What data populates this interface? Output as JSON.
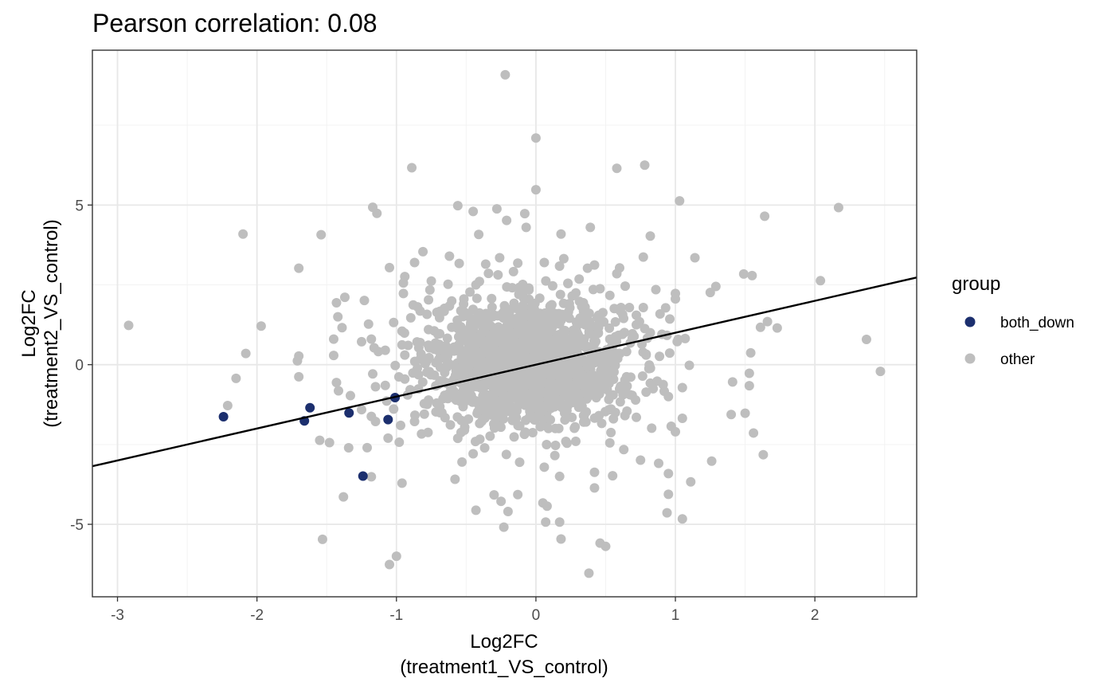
{
  "chart_data": {
    "type": "scatter",
    "title": "Pearson correlation: 0.08",
    "xlabel": [
      "Log2FC",
      "(treatment1_VS_control)"
    ],
    "ylabel": [
      "Log2FC",
      "(treatment2_VS_control)"
    ],
    "xlim": [
      -3.18,
      2.73
    ],
    "ylim": [
      -7.27,
      9.85
    ],
    "x_ticks": [
      -3,
      -2,
      -1,
      0,
      1,
      2
    ],
    "x_tick_labels": [
      "-3",
      "-2",
      "-1",
      "0",
      "1",
      "2"
    ],
    "y_ticks": [
      -5,
      0,
      5
    ],
    "y_tick_labels": [
      "-5",
      "0",
      "5"
    ],
    "grid": true,
    "legend": {
      "title": "group",
      "position": "right",
      "entries": [
        {
          "label": "both_down",
          "color": "#1c2f6e"
        },
        {
          "label": "other",
          "color": "#bebebe"
        }
      ]
    },
    "series": [
      {
        "name": "other",
        "color": "#bebebe",
        "points": [
          [
            -0.22,
            9.08
          ],
          [
            0.0,
            7.1
          ],
          [
            -0.89,
            6.17
          ],
          [
            0.58,
            6.15
          ],
          [
            0.78,
            6.25
          ],
          [
            0.0,
            5.48
          ],
          [
            1.03,
            5.13
          ],
          [
            -1.17,
            4.93
          ],
          [
            -1.14,
            4.74
          ],
          [
            -0.56,
            4.98
          ],
          [
            -0.45,
            4.8
          ],
          [
            -0.28,
            4.88
          ],
          [
            -0.21,
            4.52
          ],
          [
            -0.08,
            4.73
          ],
          [
            0.39,
            4.3
          ],
          [
            -0.07,
            4.3
          ],
          [
            1.64,
            4.65
          ],
          [
            2.17,
            4.92
          ],
          [
            -2.1,
            4.09
          ],
          [
            -1.54,
            4.07
          ],
          [
            -0.41,
            4.08
          ],
          [
            0.18,
            4.09
          ],
          [
            0.82,
            4.03
          ],
          [
            -0.81,
            3.54
          ],
          [
            -0.87,
            3.2
          ],
          [
            -0.55,
            3.17
          ],
          [
            -0.62,
            3.4
          ],
          [
            -0.36,
            3.15
          ],
          [
            -0.26,
            3.35
          ],
          [
            -0.13,
            3.18
          ],
          [
            0.06,
            3.2
          ],
          [
            0.2,
            3.32
          ],
          [
            0.37,
            3.02
          ],
          [
            0.42,
            3.12
          ],
          [
            0.58,
            2.85
          ],
          [
            0.6,
            3.03
          ],
          [
            0.77,
            3.37
          ],
          [
            1.14,
            3.35
          ],
          [
            -1.7,
            3.02
          ],
          [
            -1.05,
            3.04
          ],
          [
            -0.94,
            2.76
          ],
          [
            -0.75,
            2.62
          ],
          [
            -0.63,
            2.52
          ],
          [
            -0.34,
            2.86
          ],
          [
            0.31,
            2.68
          ],
          [
            0.64,
            2.46
          ],
          [
            1.29,
            2.45
          ],
          [
            1.49,
            2.84
          ],
          [
            1.55,
            2.79
          ],
          [
            2.04,
            2.63
          ],
          [
            -0.95,
            2.56
          ],
          [
            -0.76,
            2.34
          ],
          [
            -0.43,
            2.5
          ],
          [
            -0.17,
            2.41
          ],
          [
            -0.05,
            2.34
          ],
          [
            0.12,
            2.47
          ],
          [
            0.23,
            2.54
          ],
          [
            0.46,
            2.38
          ],
          [
            0.53,
            2.17
          ],
          [
            0.86,
            2.35
          ],
          [
            1.0,
            2.23
          ],
          [
            1.25,
            2.26
          ],
          [
            -1.43,
            1.94
          ],
          [
            -1.37,
            2.11
          ],
          [
            -1.23,
            2.01
          ],
          [
            -0.95,
            2.23
          ],
          [
            -0.88,
            1.87
          ],
          [
            -0.77,
            2.03
          ],
          [
            -0.62,
            1.84
          ],
          [
            0.34,
            1.94
          ],
          [
            0.61,
            1.79
          ],
          [
            0.67,
            1.79
          ],
          [
            0.77,
            1.79
          ],
          [
            0.93,
            1.78
          ],
          [
            1.0,
            2.06
          ],
          [
            -0.83,
            1.68
          ],
          [
            -0.71,
            1.64
          ],
          [
            -0.51,
            1.64
          ],
          [
            0.48,
            1.63
          ],
          [
            0.72,
            1.55
          ],
          [
            0.89,
            1.59
          ],
          [
            0.96,
            1.43
          ],
          [
            -1.97,
            1.21
          ],
          [
            -1.42,
            1.5
          ],
          [
            -1.2,
            1.27
          ],
          [
            -1.02,
            1.32
          ],
          [
            -0.96,
            1.05
          ],
          [
            -0.77,
            1.1
          ],
          [
            -0.69,
            0.97
          ],
          [
            0.44,
            1.47
          ],
          [
            0.57,
            1.34
          ],
          [
            0.72,
            1.25
          ],
          [
            0.78,
            1.13
          ],
          [
            0.82,
            1.0
          ],
          [
            0.94,
            0.92
          ],
          [
            1.02,
            0.79
          ],
          [
            1.61,
            1.17
          ],
          [
            1.66,
            1.35
          ],
          [
            1.73,
            1.15
          ],
          [
            -2.92,
            1.23
          ],
          [
            -1.39,
            1.16
          ],
          [
            -1.45,
            0.8
          ],
          [
            -1.25,
            0.72
          ],
          [
            -1.18,
            0.8
          ],
          [
            -1.08,
            0.45
          ],
          [
            -0.96,
            0.62
          ],
          [
            -0.84,
            0.53
          ],
          [
            -0.72,
            0.68
          ],
          [
            0.53,
            0.8
          ],
          [
            0.62,
            0.95
          ],
          [
            0.69,
            0.82
          ],
          [
            0.76,
            0.64
          ],
          [
            1.07,
            0.82
          ],
          [
            -2.08,
            0.35
          ],
          [
            -1.7,
            0.27
          ],
          [
            -1.71,
            0.12
          ],
          [
            -1.45,
            0.29
          ],
          [
            -1.16,
            0.53
          ],
          [
            -1.13,
            0.41
          ],
          [
            -0.94,
            0.3
          ],
          [
            -0.83,
            0.17
          ],
          [
            0.65,
            0.41
          ],
          [
            0.79,
            0.33
          ],
          [
            1.54,
            0.37
          ],
          [
            1.1,
            -0.02
          ],
          [
            -1.7,
            -0.38
          ],
          [
            -2.15,
            -0.43
          ],
          [
            -1.43,
            -0.56
          ],
          [
            -1.17,
            -0.29
          ],
          [
            -1.08,
            -0.65
          ],
          [
            -0.94,
            -0.45
          ],
          [
            0.56,
            -0.23
          ],
          [
            0.68,
            -0.39
          ],
          [
            0.82,
            -0.58
          ],
          [
            1.05,
            -0.72
          ],
          [
            1.41,
            -0.54
          ],
          [
            1.53,
            -0.27
          ],
          [
            1.53,
            -0.66
          ],
          [
            2.37,
            0.79
          ],
          [
            2.47,
            -0.21
          ],
          [
            -2.21,
            -1.28
          ],
          [
            -1.33,
            -0.97
          ],
          [
            -1.25,
            -1.41
          ],
          [
            -1.15,
            -0.69
          ],
          [
            -1.07,
            -1.14
          ],
          [
            -0.92,
            -0.95
          ],
          [
            -0.77,
            -1.11
          ],
          [
            0.6,
            -0.76
          ],
          [
            0.69,
            -0.96
          ],
          [
            0.79,
            -0.86
          ],
          [
            0.95,
            -1.0
          ],
          [
            1.05,
            -1.68
          ],
          [
            -1.18,
            -1.62
          ],
          [
            -1.15,
            -1.78
          ],
          [
            -1.02,
            -1.39
          ],
          [
            -0.97,
            -1.9
          ],
          [
            -0.87,
            -1.78
          ],
          [
            -0.8,
            -1.55
          ],
          [
            0.57,
            -1.5
          ],
          [
            0.72,
            -1.65
          ],
          [
            0.83,
            -1.99
          ],
          [
            0.97,
            -1.93
          ],
          [
            1.0,
            -2.1
          ],
          [
            1.4,
            -1.56
          ],
          [
            1.5,
            -1.52
          ],
          [
            1.56,
            -2.14
          ],
          [
            -1.55,
            -2.37
          ],
          [
            -1.48,
            -2.44
          ],
          [
            -1.21,
            -2.6
          ],
          [
            -1.06,
            -2.3
          ],
          [
            -0.98,
            -2.43
          ],
          [
            -0.82,
            -2.17
          ],
          [
            0.53,
            -2.45
          ],
          [
            0.63,
            -2.66
          ],
          [
            0.75,
            -2.99
          ],
          [
            0.88,
            -3.09
          ],
          [
            1.26,
            -3.02
          ],
          [
            1.63,
            -2.82
          ],
          [
            -1.18,
            -3.51
          ],
          [
            -0.96,
            -3.71
          ],
          [
            -0.58,
            -3.59
          ],
          [
            -0.53,
            -3.05
          ],
          [
            -0.45,
            -2.79
          ],
          [
            0.06,
            -3.21
          ],
          [
            0.17,
            -3.5
          ],
          [
            0.42,
            -3.37
          ],
          [
            0.55,
            -3.48
          ],
          [
            0.95,
            -3.41
          ],
          [
            1.11,
            -3.67
          ],
          [
            -1.38,
            -4.14
          ],
          [
            -0.3,
            -4.08
          ],
          [
            -0.13,
            -4.07
          ],
          [
            0.05,
            -4.33
          ],
          [
            0.42,
            -3.86
          ],
          [
            0.95,
            -4.06
          ],
          [
            -0.43,
            -4.56
          ],
          [
            -0.2,
            -4.6
          ],
          [
            -0.25,
            -4.28
          ],
          [
            0.08,
            -4.43
          ],
          [
            0.94,
            -4.64
          ],
          [
            1.05,
            -4.83
          ],
          [
            -0.23,
            -5.09
          ],
          [
            0.07,
            -4.93
          ],
          [
            0.17,
            -4.93
          ],
          [
            0.18,
            -5.46
          ],
          [
            0.46,
            -5.59
          ],
          [
            0.5,
            -5.69
          ],
          [
            -1.53,
            -5.47
          ],
          [
            -1.05,
            -6.26
          ],
          [
            -1.0,
            -6.0
          ],
          [
            0.38,
            -6.53
          ]
        ],
        "dense_core": {
          "x_mean": -0.05,
          "x_sd": 0.33,
          "y_mean": 0.0,
          "y_sd": 0.93,
          "count": 1600
        }
      },
      {
        "name": "both_down",
        "color": "#1c2f6e",
        "points": [
          [
            -2.24,
            -1.63
          ],
          [
            -1.66,
            -1.76
          ],
          [
            -1.62,
            -1.35
          ],
          [
            -1.34,
            -1.51
          ],
          [
            -1.24,
            -3.49
          ],
          [
            -1.06,
            -1.72
          ],
          [
            -1.01,
            -1.03
          ]
        ]
      }
    ],
    "regression_line": {
      "intercept": 0.0,
      "slope": 1.0,
      "color": "#000000"
    }
  }
}
